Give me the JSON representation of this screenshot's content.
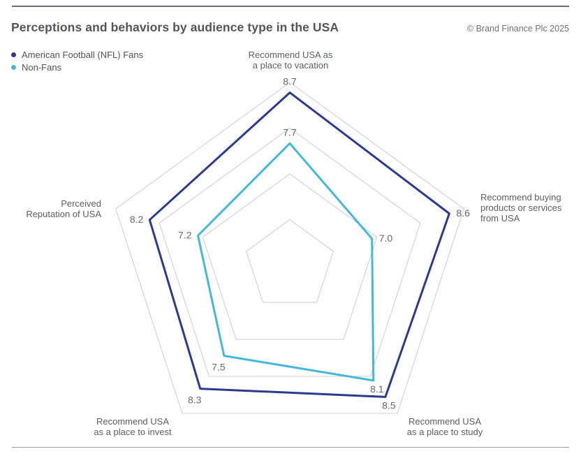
{
  "header": {
    "title": "Perceptions and behaviors by audience type in the USA",
    "copyright": "© Brand Finance Plc 2025"
  },
  "legend": {
    "items": [
      {
        "label": "American Football (NFL) Fans",
        "color": "#2b3990"
      },
      {
        "label": "Non-Fans",
        "color": "#44b8d8"
      }
    ]
  },
  "chart_data": {
    "type": "radar",
    "shape": "pentagon",
    "title": "Perceptions and behaviors by audience type in the USA",
    "axes": [
      {
        "label": "Recommend USA as\na place to vacation"
      },
      {
        "label": "Recommend buying\nproducts or services\nfrom USA"
      },
      {
        "label": "Recommend USA\nas a place to study"
      },
      {
        "label": "Recommend USA\nas a place to invest"
      },
      {
        "label": "Perceived\nReputation of USA"
      }
    ],
    "series": [
      {
        "name": "American Football (NFL) Fans",
        "color": "#2b3990",
        "values": [
          8.7,
          8.6,
          8.5,
          8.3,
          8.2
        ]
      },
      {
        "name": "Non-Fans",
        "color": "#44b8d8",
        "values": [
          7.7,
          7.0,
          8.1,
          7.5,
          7.2
        ]
      }
    ],
    "range": [
      5.3,
      8.9
    ],
    "rings": 4,
    "grid_on": true,
    "legend_position": "top-left",
    "grid_color": "#cccccc",
    "value_label_color": "#66686c",
    "axis_label_color": "#5c5e63"
  }
}
